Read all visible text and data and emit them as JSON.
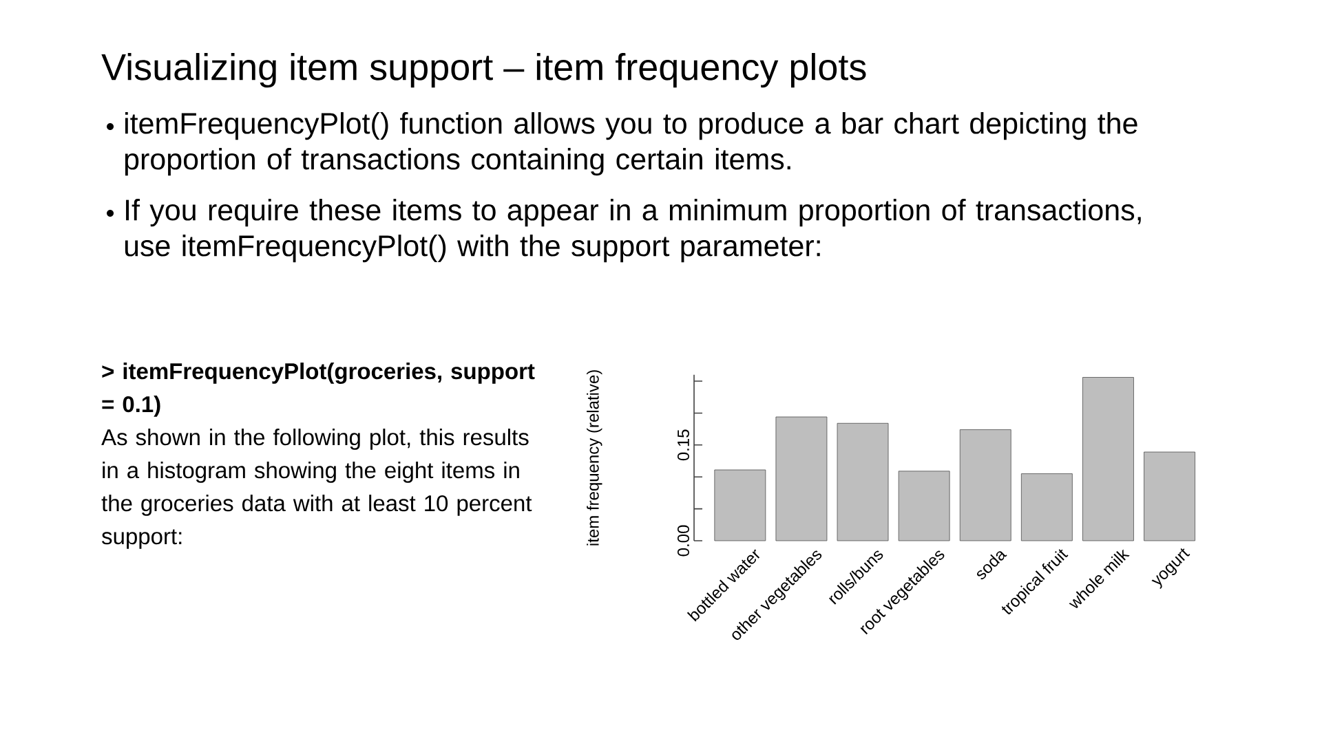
{
  "chart_data": {
    "type": "bar",
    "title": "Visualizing item support – item frequency plots",
    "ylabel": "item frequency (relative)",
    "categories": [
      "bottled water",
      "other vegetables",
      "rolls/buns",
      "root vegetables",
      "soda",
      "tropical fruit",
      "whole milk",
      "yogurt"
    ],
    "values": [
      0.111,
      0.194,
      0.184,
      0.109,
      0.174,
      0.105,
      0.256,
      0.139
    ],
    "color": "#bebebe",
    "ylim": [
      0,
      0.26
    ],
    "yticks": [
      {
        "value": 0,
        "label": "0.00"
      },
      {
        "value": 0.05,
        "label": null
      },
      {
        "value": 0.1,
        "label": null
      },
      {
        "value": 0.15,
        "label": "0.15"
      },
      {
        "value": 0.2,
        "label": null
      },
      {
        "value": 0.25,
        "label": null
      }
    ],
    "annotations": [
      "itemFrequencyPlot() function allows you to produce a bar chart depicting the proportion of transactions containing certain items.",
      "If you require these items to appear in a minimum proportion of transactions, use itemFrequencyPlot() with the support parameter:",
      "> itemFrequencyPlot(groceries, support = 0.1)",
      "As shown in the following plot, this results in a histogram showing the eight items in the groceries data with at least 10 percent support:"
    ]
  }
}
